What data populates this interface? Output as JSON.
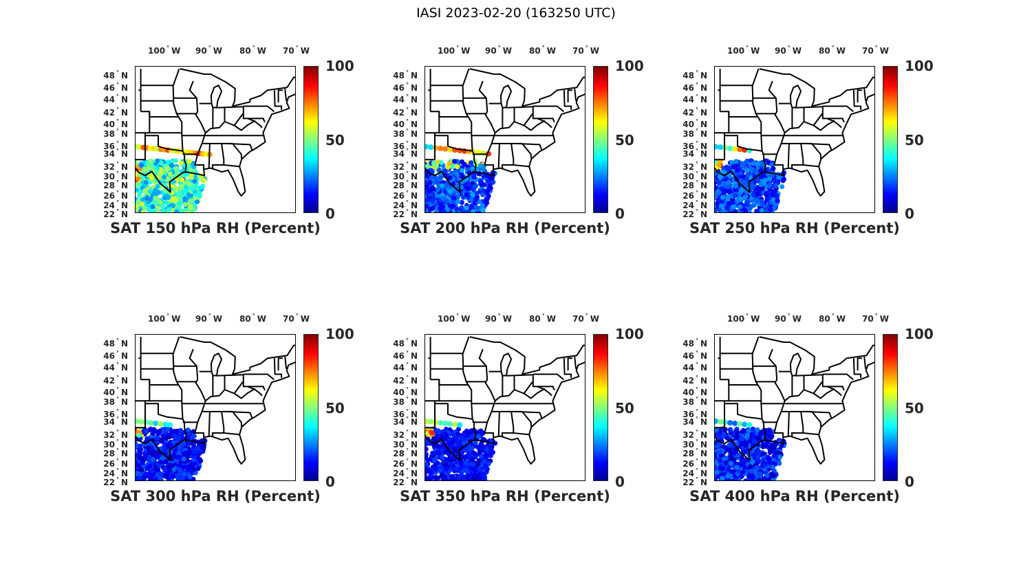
{
  "figure_title": "IASI 2023-02-20 (163250 UTC)",
  "chart_data": {
    "type": "scatter",
    "title": "IASI 2023-02-20 (163250 UTC)",
    "lon_ticks": [
      {
        "label": "100",
        "hem": "W",
        "value": -100
      },
      {
        "label": "90",
        "hem": "W",
        "value": -90
      },
      {
        "label": "80",
        "hem": "W",
        "value": -80
      },
      {
        "label": "70",
        "hem": "W",
        "value": -70
      }
    ],
    "lat_ticks": [
      48,
      46,
      44,
      42,
      40,
      38,
      36,
      34,
      32,
      30,
      28,
      26,
      24,
      22
    ],
    "lat_hem": "N",
    "colorbar": {
      "range": [
        0,
        100
      ],
      "ticks": [
        "0",
        "50",
        "100"
      ],
      "colormap": "jet"
    },
    "panels": [
      {
        "title": "SAT 150 hPa RH (Percent)",
        "level_hPa": 150,
        "typical_rh": [
          25,
          60
        ],
        "north_strip_rh": [
          55,
          85
        ]
      },
      {
        "title": "SAT 200 hPa RH (Percent)",
        "level_hPa": 200,
        "typical_rh": [
          8,
          30
        ],
        "north_strip_rh": [
          55,
          85
        ]
      },
      {
        "title": "SAT 250 hPa RH (Percent)",
        "level_hPa": 250,
        "typical_rh": [
          8,
          28
        ],
        "north_strip_rh": [
          40,
          95
        ]
      },
      {
        "title": "SAT 300 hPa RH (Percent)",
        "level_hPa": 300,
        "typical_rh": [
          5,
          22
        ],
        "north_strip_rh": [
          40,
          95
        ]
      },
      {
        "title": "SAT 350 hPa RH (Percent)",
        "level_hPa": 350,
        "typical_rh": [
          5,
          20
        ],
        "north_strip_rh": [
          40,
          85
        ]
      },
      {
        "title": "SAT 400 hPa RH (Percent)",
        "level_hPa": 400,
        "typical_rh": [
          5,
          25
        ],
        "north_strip_rh": [
          15,
          50
        ]
      }
    ]
  }
}
